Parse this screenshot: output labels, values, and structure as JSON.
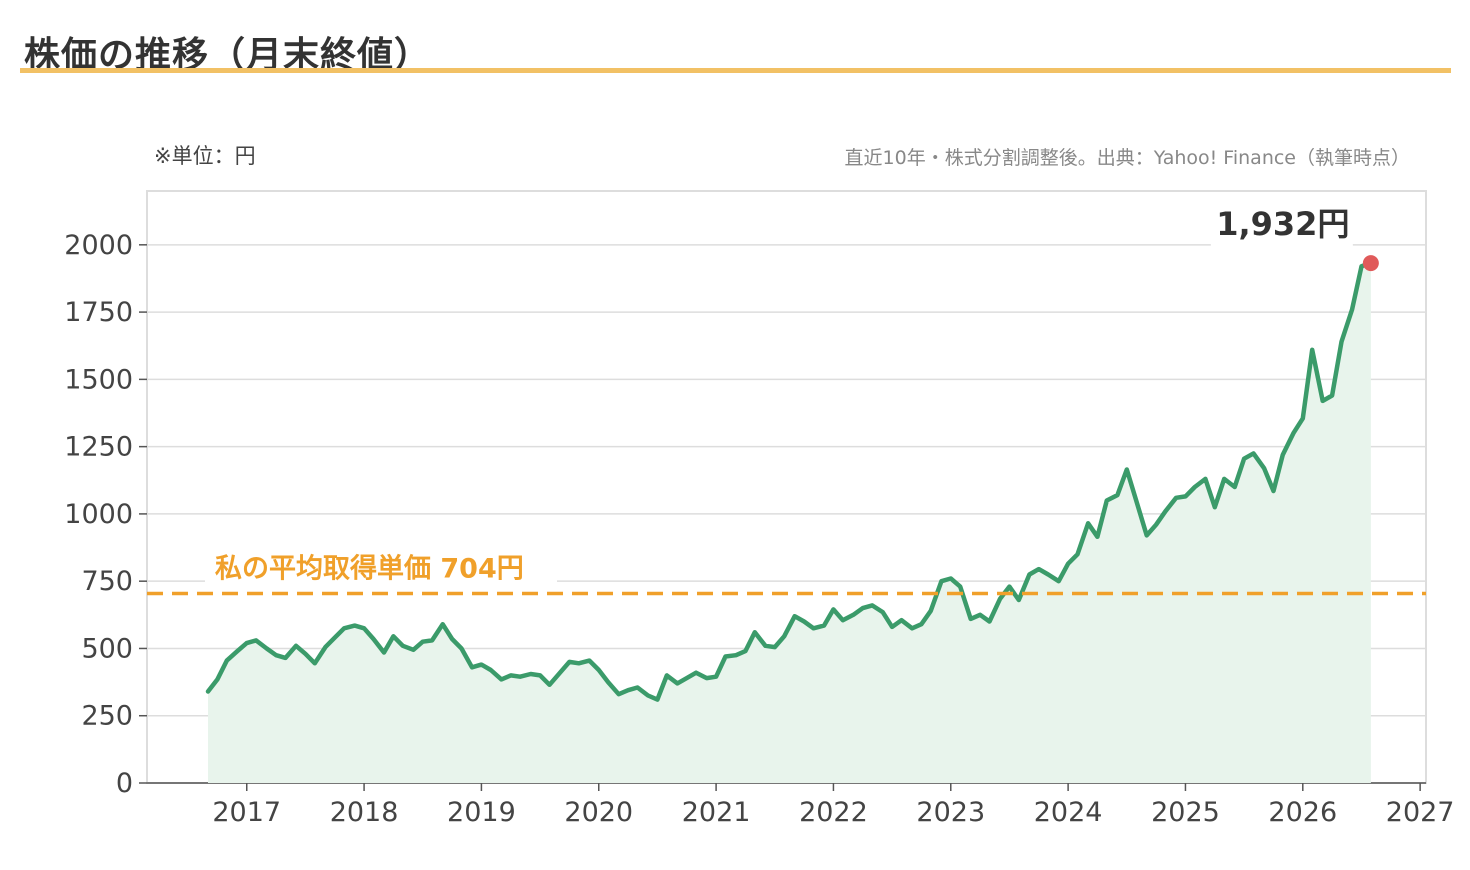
{
  "header": {
    "title": "株価の推移（月末終値）",
    "unit_note": "※単位：円",
    "source_note": "直近10年・株式分割調整後。出典：Yahoo! Finance（執筆時点）"
  },
  "colors": {
    "line": "#3b9b6a",
    "area": "#e8f4ec",
    "reference": "#f0a02a",
    "last_point": "#e05a5a",
    "title_underline": "#f2c165",
    "grid": "#dddddd"
  },
  "chart_data": {
    "type": "area",
    "title": "株価の推移（月末終値）",
    "ylabel": "※単位：円",
    "xlabel": "",
    "ylim": [
      0,
      2200
    ],
    "xlim": [
      2016.15,
      2027.05
    ],
    "y_ticks": [
      0,
      250,
      500,
      750,
      1000,
      1250,
      1500,
      1750,
      2000
    ],
    "x_ticks": [
      2017,
      2018,
      2019,
      2020,
      2021,
      2022,
      2023,
      2024,
      2025,
      2026,
      2027
    ],
    "grid": true,
    "reference_line": {
      "value": 704,
      "label": "私の平均取得単価 704円"
    },
    "last_point_label": "1,932円",
    "series": [
      {
        "points": [
          [
            2016.67,
            340
          ],
          [
            2016.75,
            385
          ],
          [
            2016.83,
            455
          ],
          [
            2016.92,
            490
          ],
          [
            2017.0,
            520
          ],
          [
            2017.08,
            530
          ],
          [
            2017.17,
            500
          ],
          [
            2017.25,
            475
          ],
          [
            2017.33,
            465
          ],
          [
            2017.42,
            510
          ],
          [
            2017.5,
            480
          ],
          [
            2017.58,
            445
          ],
          [
            2017.67,
            505
          ],
          [
            2017.75,
            540
          ],
          [
            2017.83,
            575
          ],
          [
            2017.92,
            585
          ],
          [
            2018.0,
            575
          ],
          [
            2018.08,
            535
          ],
          [
            2018.17,
            485
          ],
          [
            2018.25,
            545
          ],
          [
            2018.33,
            510
          ],
          [
            2018.42,
            495
          ],
          [
            2018.5,
            525
          ],
          [
            2018.58,
            530
          ],
          [
            2018.67,
            590
          ],
          [
            2018.75,
            535
          ],
          [
            2018.83,
            500
          ],
          [
            2018.92,
            430
          ],
          [
            2019.0,
            440
          ],
          [
            2019.08,
            420
          ],
          [
            2019.17,
            385
          ],
          [
            2019.25,
            400
          ],
          [
            2019.33,
            395
          ],
          [
            2019.42,
            405
          ],
          [
            2019.5,
            400
          ],
          [
            2019.58,
            365
          ],
          [
            2019.67,
            410
          ],
          [
            2019.75,
            450
          ],
          [
            2019.83,
            445
          ],
          [
            2019.92,
            455
          ],
          [
            2020.0,
            420
          ],
          [
            2020.08,
            375
          ],
          [
            2020.17,
            330
          ],
          [
            2020.25,
            345
          ],
          [
            2020.33,
            355
          ],
          [
            2020.42,
            325
          ],
          [
            2020.5,
            310
          ],
          [
            2020.58,
            400
          ],
          [
            2020.67,
            370
          ],
          [
            2020.75,
            390
          ],
          [
            2020.83,
            410
          ],
          [
            2020.92,
            390
          ],
          [
            2021.0,
            395
          ],
          [
            2021.08,
            470
          ],
          [
            2021.17,
            475
          ],
          [
            2021.25,
            490
          ],
          [
            2021.33,
            560
          ],
          [
            2021.42,
            510
          ],
          [
            2021.5,
            505
          ],
          [
            2021.58,
            545
          ],
          [
            2021.67,
            620
          ],
          [
            2021.75,
            600
          ],
          [
            2021.83,
            575
          ],
          [
            2021.92,
            585
          ],
          [
            2022.0,
            645
          ],
          [
            2022.08,
            605
          ],
          [
            2022.17,
            625
          ],
          [
            2022.25,
            650
          ],
          [
            2022.33,
            660
          ],
          [
            2022.42,
            635
          ],
          [
            2022.5,
            580
          ],
          [
            2022.58,
            605
          ],
          [
            2022.67,
            575
          ],
          [
            2022.75,
            590
          ],
          [
            2022.83,
            640
          ],
          [
            2022.92,
            750
          ],
          [
            2023.0,
            760
          ],
          [
            2023.08,
            730
          ],
          [
            2023.17,
            610
          ],
          [
            2023.25,
            625
          ],
          [
            2023.33,
            600
          ],
          [
            2023.42,
            685
          ],
          [
            2023.5,
            730
          ],
          [
            2023.58,
            680
          ],
          [
            2023.67,
            775
          ],
          [
            2023.75,
            795
          ],
          [
            2023.83,
            775
          ],
          [
            2023.92,
            750
          ],
          [
            2024.0,
            815
          ],
          [
            2024.08,
            850
          ],
          [
            2024.17,
            965
          ],
          [
            2024.25,
            915
          ],
          [
            2024.33,
            1050
          ],
          [
            2024.42,
            1070
          ],
          [
            2024.5,
            1165
          ],
          [
            2024.58,
            1050
          ],
          [
            2024.67,
            920
          ],
          [
            2024.75,
            960
          ],
          [
            2024.83,
            1010
          ],
          [
            2024.92,
            1060
          ],
          [
            2025.0,
            1065
          ],
          [
            2025.08,
            1100
          ],
          [
            2025.17,
            1130
          ],
          [
            2025.25,
            1025
          ],
          [
            2025.33,
            1130
          ],
          [
            2025.42,
            1100
          ],
          [
            2025.5,
            1205
          ],
          [
            2025.58,
            1225
          ],
          [
            2025.67,
            1170
          ],
          [
            2025.75,
            1085
          ],
          [
            2025.83,
            1220
          ],
          [
            2025.92,
            1300
          ],
          [
            2026.0,
            1355
          ],
          [
            2026.08,
            1610
          ],
          [
            2026.17,
            1420
          ],
          [
            2026.25,
            1440
          ],
          [
            2026.33,
            1640
          ],
          [
            2026.42,
            1760
          ],
          [
            2026.5,
            1920
          ],
          [
            2026.58,
            1932
          ]
        ]
      }
    ]
  }
}
